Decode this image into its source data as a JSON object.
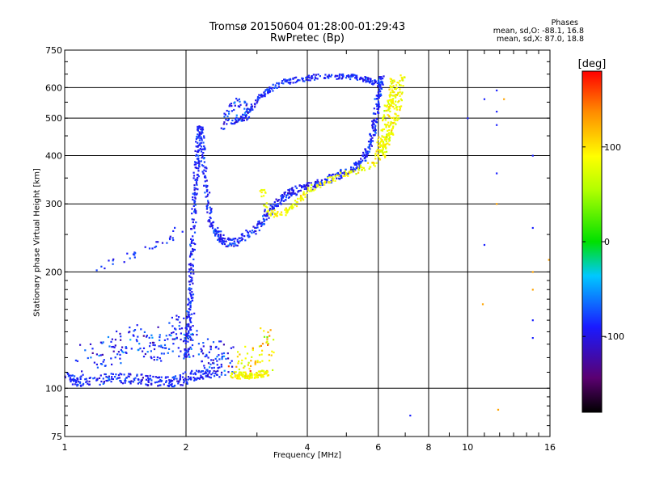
{
  "chart_data": {
    "type": "scatter",
    "title": "Tromsø 20150604 01:28:00-01:29:43",
    "subtitle": "RwPretec (Bp)",
    "xlabel": "Frequency [MHz]",
    "ylabel": "Stationary phase Virtual Height [km]",
    "xscale": "log",
    "yscale": "log",
    "xlim": [
      1,
      16
    ],
    "ylim": [
      75,
      750
    ],
    "xticks": [
      1,
      2,
      4,
      6,
      8,
      10,
      16
    ],
    "xtick_labels": [
      "1",
      "2",
      "4",
      "6",
      "8",
      "10",
      "16"
    ],
    "yticks": [
      75,
      100,
      200,
      300,
      400,
      500,
      600,
      750
    ],
    "ytick_labels": [
      "75",
      "100",
      "200",
      "300",
      "400",
      "500",
      "600",
      "750"
    ],
    "grid": true,
    "colorbar": {
      "label": "[deg]",
      "range": [
        -180,
        180
      ],
      "ticks": [
        -100,
        0,
        100
      ],
      "tick_labels": [
        "-100",
        "0",
        "100"
      ]
    },
    "phase_stats": {
      "heading": "Phases",
      "o_line": "mean, sd,O: -88.1, 16.8",
      "x_line": "mean, sd,X:  87.0, 18.8"
    },
    "series": [
      {
        "mode": "O",
        "phase_mean": -88.1,
        "phase_sd": 16.8
      },
      {
        "mode": "X",
        "phase_mean": 87.0,
        "phase_sd": 18.8
      }
    ],
    "traces": {
      "o_E_layer": [
        [
          1.0,
          107
        ],
        [
          1.1,
          104
        ],
        [
          1.3,
          106
        ],
        [
          1.5,
          106
        ],
        [
          1.7,
          104
        ],
        [
          1.9,
          104
        ],
        [
          2.1,
          108
        ],
        [
          2.4,
          110
        ]
      ],
      "o_E_scatter": [
        [
          1.1,
          118
        ],
        [
          1.25,
          122
        ],
        [
          1.35,
          130
        ],
        [
          1.5,
          135
        ],
        [
          1.6,
          128
        ],
        [
          1.75,
          126
        ],
        [
          1.85,
          140
        ],
        [
          2.0,
          150
        ],
        [
          1.95,
          130
        ],
        [
          2.3,
          125
        ],
        [
          2.5,
          120
        ],
        [
          2.2,
          115
        ],
        [
          2.7,
          118
        ]
      ],
      "o_F1_rise": [
        [
          2.0,
          120
        ],
        [
          2.02,
          140
        ],
        [
          2.05,
          165
        ],
        [
          2.06,
          200
        ],
        [
          2.08,
          240
        ],
        [
          2.1,
          300
        ],
        [
          2.12,
          360
        ],
        [
          2.14,
          420
        ],
        [
          2.17,
          470
        ],
        [
          2.2,
          410
        ],
        [
          2.25,
          330
        ],
        [
          2.3,
          270
        ],
        [
          2.4,
          250
        ],
        [
          2.5,
          238
        ],
        [
          2.7,
          240
        ],
        [
          3.0,
          260
        ],
        [
          3.2,
          285
        ],
        [
          3.4,
          305
        ],
        [
          3.6,
          320
        ],
        [
          3.9,
          330
        ],
        [
          4.3,
          340
        ],
        [
          4.8,
          355
        ],
        [
          5.2,
          370
        ],
        [
          5.5,
          390
        ],
        [
          5.7,
          420
        ],
        [
          5.85,
          470
        ],
        [
          5.95,
          540
        ],
        [
          6.05,
          600
        ],
        [
          6.1,
          640
        ]
      ],
      "o_F2_upper": [
        [
          2.6,
          490
        ],
        [
          2.8,
          500
        ],
        [
          3.0,
          560
        ],
        [
          3.2,
          590
        ],
        [
          3.5,
          620
        ],
        [
          3.8,
          630
        ],
        [
          4.2,
          640
        ],
        [
          4.8,
          640
        ],
        [
          5.2,
          640
        ],
        [
          5.6,
          630
        ],
        [
          5.9,
          620
        ]
      ],
      "o_low_branch": [
        [
          1.2,
          205
        ],
        [
          1.4,
          215
        ],
        [
          1.6,
          230
        ],
        [
          1.8,
          245
        ],
        [
          1.95,
          260
        ]
      ],
      "o_cusp_upper": [
        [
          2.45,
          470
        ],
        [
          2.55,
          520
        ],
        [
          2.7,
          550
        ],
        [
          2.9,
          530
        ],
        [
          2.6,
          490
        ]
      ],
      "x_E_layer": [
        [
          2.6,
          108
        ],
        [
          2.8,
          108
        ],
        [
          3.0,
          108
        ],
        [
          3.2,
          110
        ]
      ],
      "x_E_scatter": [
        [
          2.6,
          115
        ],
        [
          2.8,
          118
        ],
        [
          3.0,
          122
        ],
        [
          3.2,
          130
        ],
        [
          3.1,
          140
        ]
      ],
      "x_F_trace": [
        [
          3.05,
          340
        ],
        [
          3.2,
          285
        ],
        [
          3.4,
          282
        ],
        [
          3.6,
          290
        ],
        [
          3.8,
          305
        ],
        [
          4.0,
          325
        ],
        [
          4.4,
          340
        ],
        [
          4.8,
          355
        ],
        [
          5.3,
          365
        ],
        [
          5.8,
          380
        ],
        [
          6.2,
          420
        ],
        [
          6.5,
          470
        ],
        [
          6.7,
          520
        ],
        [
          6.8,
          580
        ],
        [
          6.9,
          640
        ]
      ],
      "x_F_scatter": [
        [
          6.0,
          400
        ],
        [
          6.2,
          440
        ],
        [
          6.3,
          500
        ],
        [
          6.5,
          560
        ],
        [
          6.6,
          620
        ],
        [
          6.4,
          460
        ],
        [
          6.1,
          410
        ]
      ],
      "sparse_far": [
        [
          11.0,
          560
        ],
        [
          11.8,
          590
        ],
        [
          11.8,
          520
        ],
        [
          11.8,
          480
        ],
        [
          11.8,
          360
        ],
        [
          11.8,
          300
        ],
        [
          14.5,
          400
        ],
        [
          14.5,
          260
        ],
        [
          14.5,
          200
        ],
        [
          14.5,
          180
        ],
        [
          14.5,
          150
        ],
        [
          14.5,
          135
        ],
        [
          12.3,
          560
        ],
        [
          11.0,
          235
        ],
        [
          10.9,
          165
        ],
        [
          10.0,
          500
        ],
        [
          7.2,
          85
        ],
        [
          15.9,
          215
        ],
        [
          11.9,
          88
        ]
      ]
    }
  }
}
